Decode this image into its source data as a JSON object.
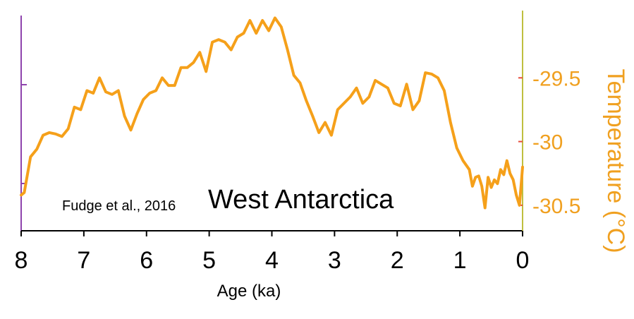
{
  "chart_data": {
    "type": "line",
    "title": "",
    "xlabel": "Age (ka)",
    "ylabel": "Temperature (°C)",
    "xlim": [
      8,
      0
    ],
    "ylim": [
      -30.7,
      -29.0
    ],
    "x_ticks": [
      "8",
      "7",
      "6",
      "5",
      "4",
      "3",
      "2",
      "1",
      "0"
    ],
    "y_ticks": [
      "-29.5",
      "-30",
      "-30.5"
    ],
    "annotations": {
      "source": "Fudge et al., 2016",
      "region": "West Antarctica"
    },
    "grid": false,
    "colors": {
      "series": "#f5a01a",
      "right_axis": "#bfbf3f",
      "left_axis": "#8e44ad"
    },
    "series": [
      {
        "x": [
          8.0,
          7.95,
          7.85,
          7.75,
          7.65,
          7.55,
          7.45,
          7.35,
          7.25,
          7.15,
          7.05,
          6.95,
          6.85,
          6.75,
          6.65,
          6.55,
          6.45,
          6.35,
          6.25,
          6.15,
          6.05,
          5.95,
          5.85,
          5.75,
          5.65,
          5.55,
          5.45,
          5.35,
          5.25,
          5.15,
          5.05,
          4.95,
          4.85,
          4.75,
          4.65,
          4.55,
          4.45,
          4.35,
          4.25,
          4.15,
          4.05,
          3.95,
          3.85,
          3.75,
          3.65,
          3.55,
          3.45,
          3.35,
          3.25,
          3.15,
          3.05,
          2.95,
          2.85,
          2.75,
          2.65,
          2.55,
          2.45,
          2.35,
          2.25,
          2.15,
          2.05,
          1.95,
          1.85,
          1.75,
          1.65,
          1.55,
          1.45,
          1.35,
          1.25,
          1.15,
          1.05,
          0.95,
          0.85,
          0.8,
          0.75,
          0.7,
          0.65,
          0.6,
          0.55,
          0.5,
          0.45,
          0.4,
          0.35,
          0.3,
          0.25,
          0.2,
          0.15,
          0.1,
          0.05,
          0.0
        ],
        "values": [
          -30.42,
          -30.4,
          -30.12,
          -30.06,
          -29.95,
          -29.93,
          -29.94,
          -29.96,
          -29.9,
          -29.73,
          -29.75,
          -29.6,
          -29.62,
          -29.5,
          -29.61,
          -29.63,
          -29.6,
          -29.8,
          -29.91,
          -29.78,
          -29.67,
          -29.62,
          -29.6,
          -29.5,
          -29.56,
          -29.56,
          -29.42,
          -29.42,
          -29.38,
          -29.3,
          -29.45,
          -29.22,
          -29.2,
          -29.22,
          -29.28,
          -29.18,
          -29.15,
          -29.05,
          -29.15,
          -29.05,
          -29.13,
          -29.03,
          -29.1,
          -29.28,
          -29.48,
          -29.54,
          -29.68,
          -29.8,
          -29.93,
          -29.85,
          -29.95,
          -29.75,
          -29.7,
          -29.65,
          -29.58,
          -29.7,
          -29.65,
          -29.52,
          -29.55,
          -29.58,
          -29.7,
          -29.72,
          -29.55,
          -29.75,
          -29.68,
          -29.46,
          -29.47,
          -29.5,
          -29.6,
          -29.85,
          -30.05,
          -30.15,
          -30.22,
          -30.35,
          -30.28,
          -30.27,
          -30.35,
          -30.52,
          -30.28,
          -30.36,
          -30.3,
          -30.33,
          -30.22,
          -30.26,
          -30.15,
          -30.25,
          -30.3,
          -30.42,
          -30.5,
          -30.2
        ]
      }
    ]
  }
}
